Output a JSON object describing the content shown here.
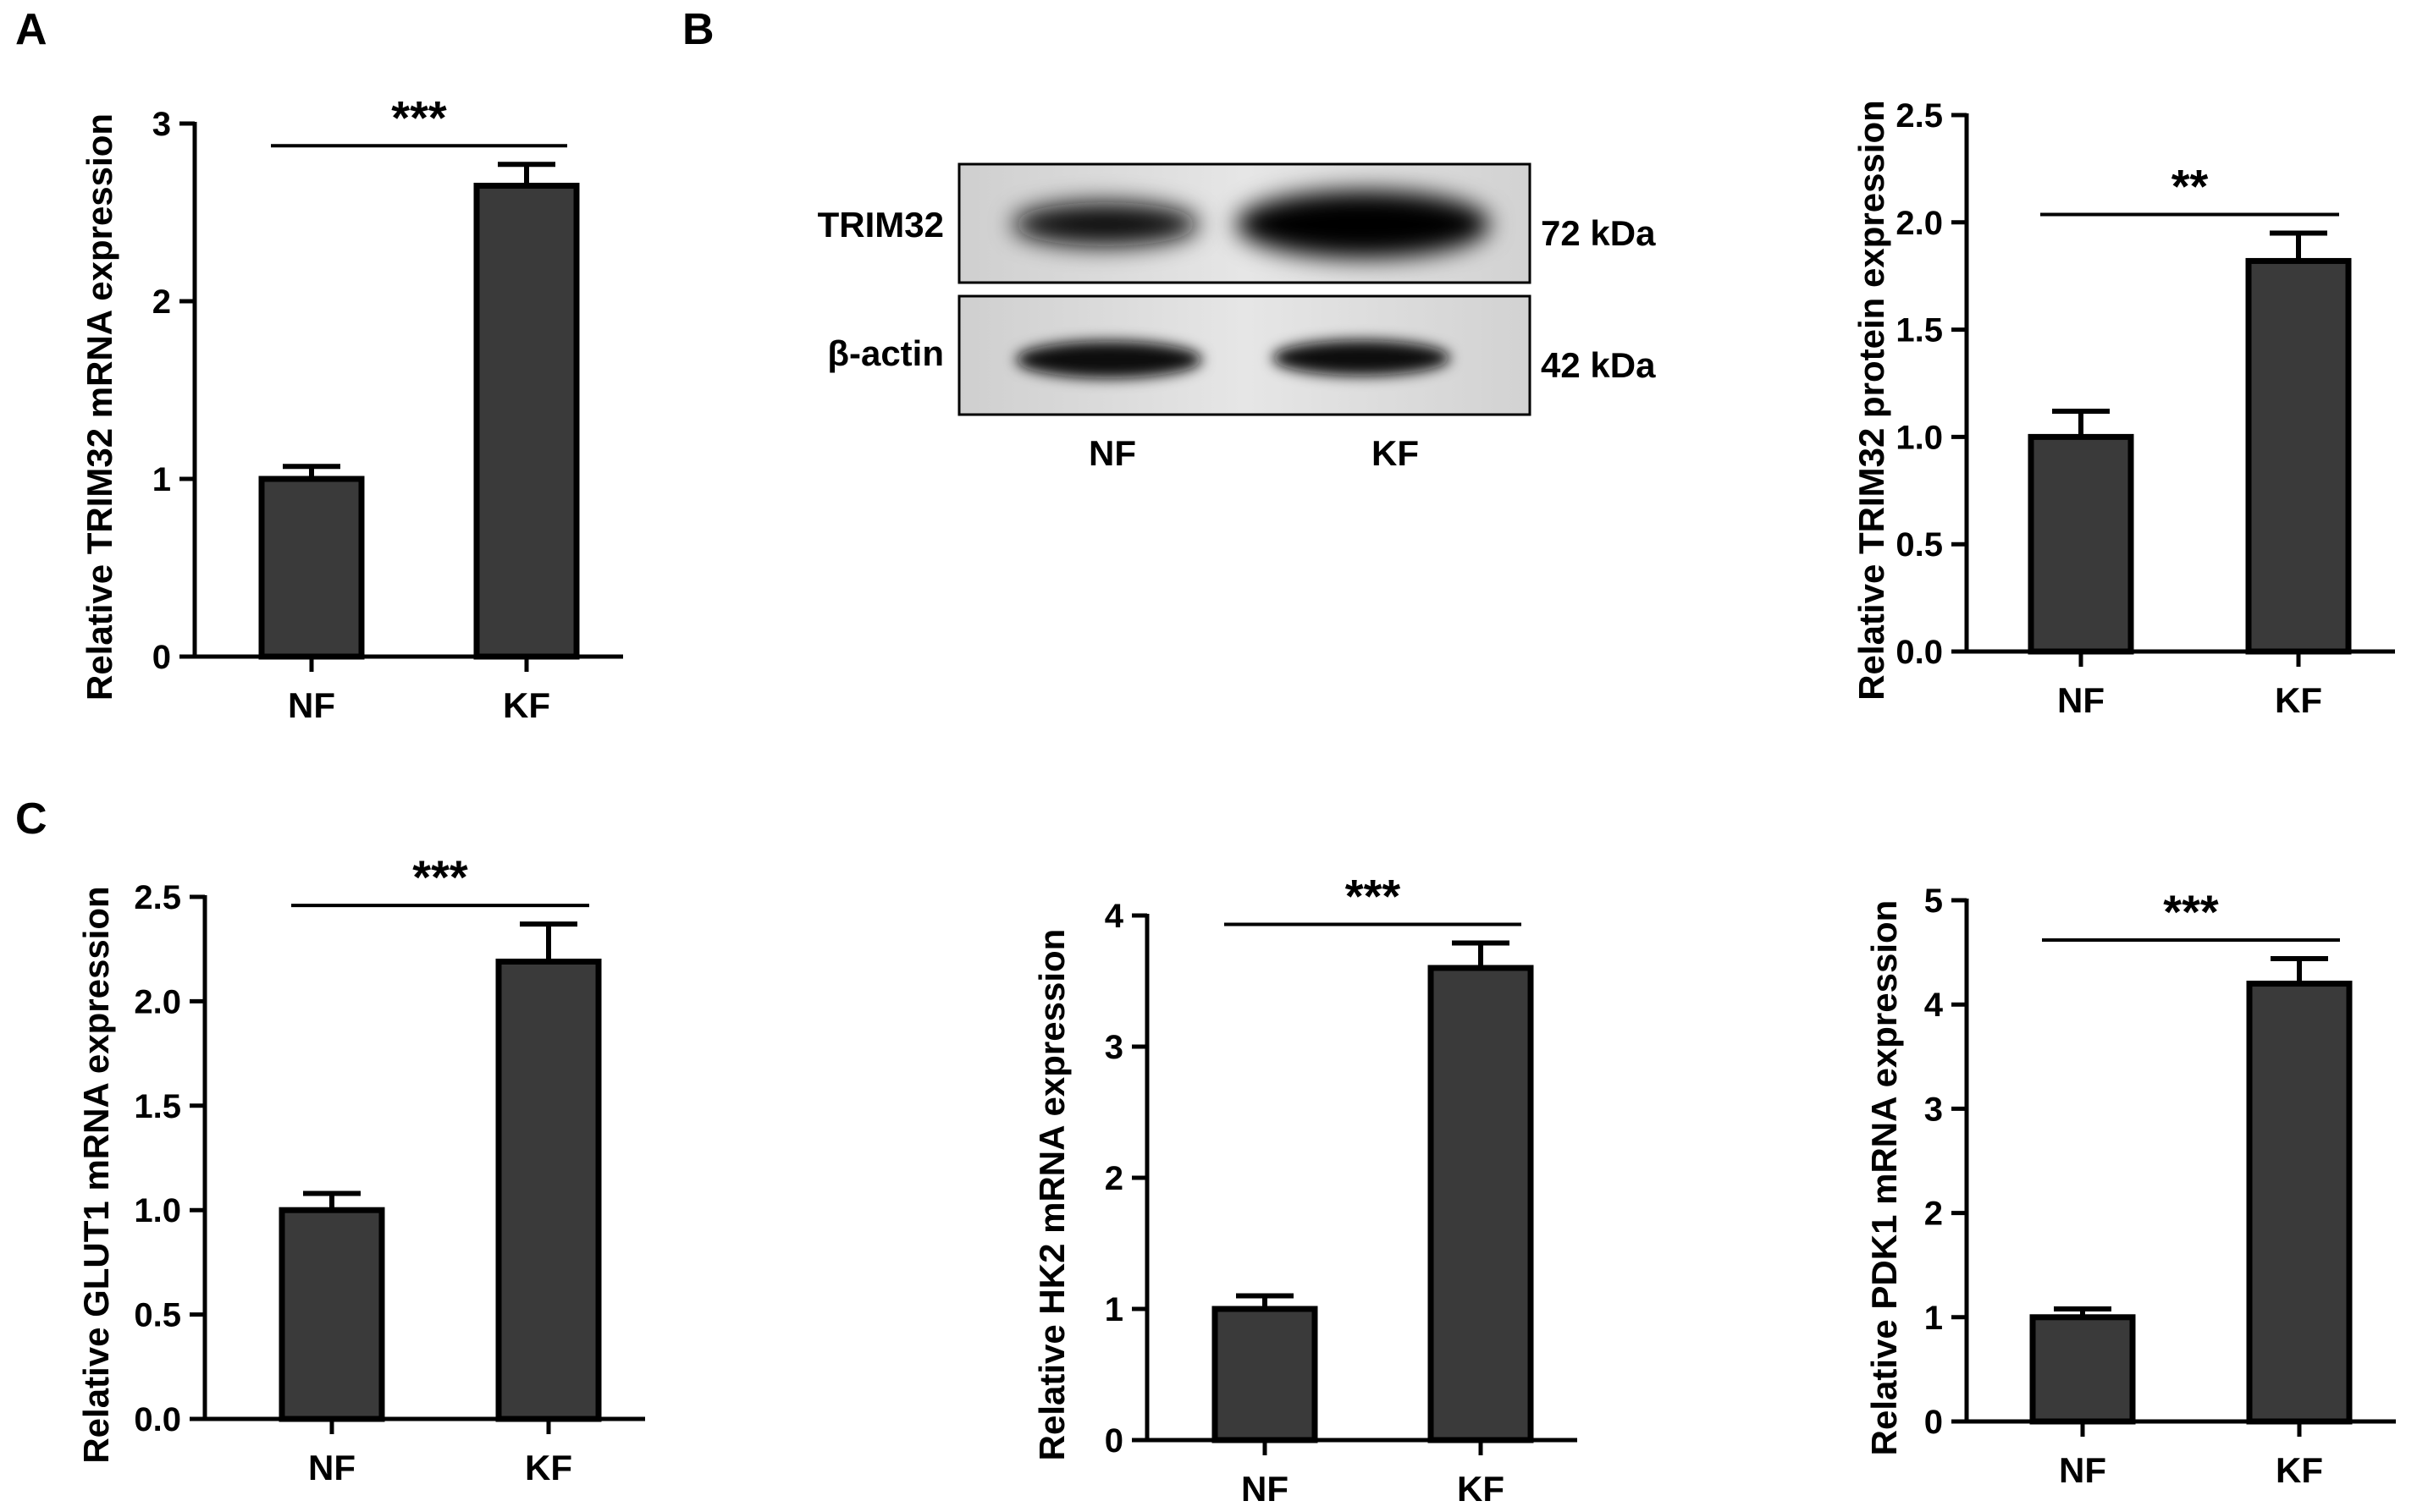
{
  "panel_labels": {
    "a": "A",
    "b": "B",
    "c": "C"
  },
  "blot": {
    "rows": [
      {
        "label": "TRIM32",
        "kda": "72 kDa",
        "intensity": [
          0.82,
          1.0
        ]
      },
      {
        "label": "β-actin",
        "kda": "42 kDa",
        "intensity": [
          0.9,
          0.88
        ]
      }
    ],
    "lanes": [
      "NF",
      "KF"
    ]
  },
  "chart_data": [
    {
      "type": "bar",
      "panel": "A",
      "categories": [
        "NF",
        "KF"
      ],
      "values": [
        1.0,
        2.65
      ],
      "errors": [
        0.07,
        0.12
      ],
      "ylabel": "Relative TRIM32 mRNA expression",
      "ylim": [
        0,
        3
      ],
      "yticks": [
        0,
        1,
        2,
        3
      ],
      "tick_labels": [
        "0",
        "1",
        "2",
        "3"
      ],
      "significance": "***"
    },
    {
      "type": "bar",
      "panel": "B",
      "categories": [
        "NF",
        "KF"
      ],
      "values": [
        1.0,
        1.82
      ],
      "errors": [
        0.12,
        0.13
      ],
      "ylabel": "Relative TRIM32 protein expression",
      "ylim": [
        0,
        2.5
      ],
      "yticks": [
        0,
        0.5,
        1.0,
        1.5,
        2.0,
        2.5
      ],
      "tick_labels": [
        "0.0",
        "0.5",
        "1.0",
        "1.5",
        "2.0",
        "2.5"
      ],
      "significance": "**"
    },
    {
      "type": "bar",
      "panel": "C",
      "categories": [
        "NF",
        "KF"
      ],
      "values": [
        1.0,
        2.19
      ],
      "errors": [
        0.08,
        0.18
      ],
      "ylabel": "Relative GLUT1 mRNA expression",
      "ylim": [
        0,
        2.5
      ],
      "yticks": [
        0,
        0.5,
        1.0,
        1.5,
        2.0,
        2.5
      ],
      "tick_labels": [
        "0.0",
        "0.5",
        "1.0",
        "1.5",
        "2.0",
        "2.5"
      ],
      "significance": "***"
    },
    {
      "type": "bar",
      "panel": "C",
      "categories": [
        "NF",
        "KF"
      ],
      "values": [
        1.0,
        3.6
      ],
      "errors": [
        0.1,
        0.19
      ],
      "ylabel": "Relative HK2 mRNA expression",
      "ylim": [
        0,
        4
      ],
      "yticks": [
        0,
        1,
        2,
        3,
        4
      ],
      "tick_labels": [
        "0",
        "1",
        "2",
        "3",
        "4"
      ],
      "significance": "***"
    },
    {
      "type": "bar",
      "panel": "C",
      "categories": [
        "NF",
        "KF"
      ],
      "values": [
        1.0,
        4.2
      ],
      "errors": [
        0.08,
        0.24
      ],
      "ylabel": "Relative PDK1 mRNA expression",
      "ylim": [
        0,
        5
      ],
      "yticks": [
        0,
        1,
        2,
        3,
        4,
        5
      ],
      "tick_labels": [
        "0",
        "1",
        "2",
        "3",
        "4",
        "5"
      ],
      "significance": "***"
    }
  ],
  "colors": {
    "bar": "#3a3a3a",
    "edge": "#000000"
  }
}
